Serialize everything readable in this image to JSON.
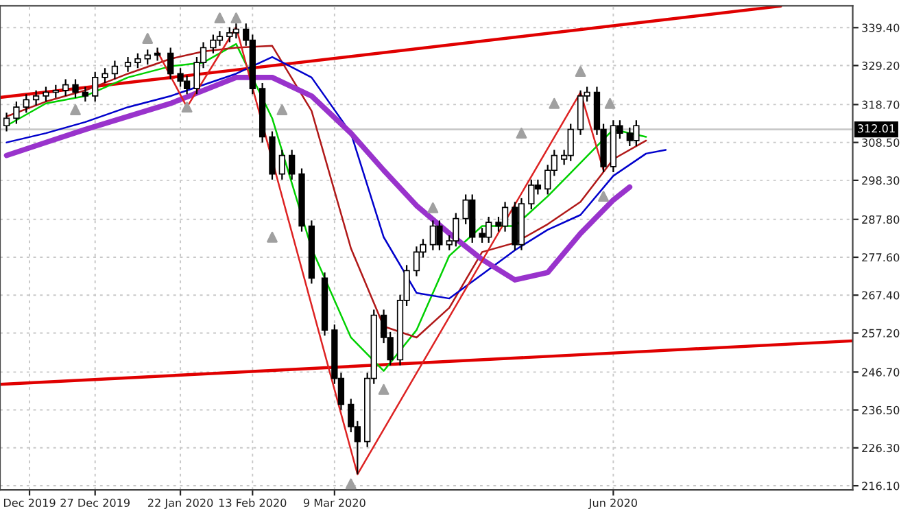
{
  "chart_data": {
    "type": "candlestick",
    "x": [
      "2019-11-30",
      "2019-12-03",
      "2019-12-06",
      "2019-12-09",
      "2019-12-12",
      "2019-12-15",
      "2019-12-18",
      "2019-12-21",
      "2019-12-24",
      "2019-12-27",
      "2019-12-30",
      "2020-01-02",
      "2020-01-06",
      "2020-01-09",
      "2020-01-12",
      "2020-01-15",
      "2020-01-19",
      "2020-01-22",
      "2020-01-24",
      "2020-01-27",
      "2020-01-29",
      "2020-02-01",
      "2020-02-03",
      "2020-02-06",
      "2020-02-08",
      "2020-02-11",
      "2020-02-13",
      "2020-02-16",
      "2020-02-19",
      "2020-02-22",
      "2020-02-25",
      "2020-02-28",
      "2020-03-02",
      "2020-03-06",
      "2020-03-09",
      "2020-03-11",
      "2020-03-14",
      "2020-03-16",
      "2020-03-19",
      "2020-03-21",
      "2020-03-24",
      "2020-03-26",
      "2020-03-29",
      "2020-03-31",
      "2020-04-03",
      "2020-04-05",
      "2020-04-08",
      "2020-04-10",
      "2020-04-13",
      "2020-04-15",
      "2020-04-18",
      "2020-04-20",
      "2020-04-23",
      "2020-04-25",
      "2020-04-28",
      "2020-04-30",
      "2020-05-03",
      "2020-05-05",
      "2020-05-08",
      "2020-05-10",
      "2020-05-13",
      "2020-05-15",
      "2020-05-18",
      "2020-05-20",
      "2020-05-23",
      "2020-05-25",
      "2020-05-28",
      "2020-05-30",
      "2020-06-02",
      "2020-06-04",
      "2020-06-07",
      "2020-06-09"
    ],
    "ohlc": [
      [
        313,
        316.5,
        311.5,
        315
      ],
      [
        315,
        319.5,
        313.5,
        318
      ],
      [
        318,
        321.5,
        316.5,
        320
      ],
      [
        320,
        322.5,
        318.5,
        321
      ],
      [
        321,
        323.5,
        319.5,
        322
      ],
      [
        322,
        324,
        320.5,
        322.5
      ],
      [
        322.5,
        325.5,
        321,
        324
      ],
      [
        324,
        325.5,
        320.5,
        322
      ],
      [
        322,
        323.5,
        319.5,
        321
      ],
      [
        321,
        327.5,
        319.5,
        326
      ],
      [
        326,
        328.5,
        324.5,
        327
      ],
      [
        327,
        330.5,
        325.5,
        329
      ],
      [
        329,
        331.5,
        327.5,
        330
      ],
      [
        330,
        332.5,
        328.5,
        331
      ],
      [
        331,
        333.5,
        329.5,
        332
      ],
      [
        332.5,
        334,
        330.5,
        332
      ],
      [
        332.5,
        334,
        325.5,
        327
      ],
      [
        327,
        328.5,
        323.5,
        325
      ],
      [
        325,
        326.5,
        321.5,
        323
      ],
      [
        323,
        331.5,
        321.5,
        330
      ],
      [
        330,
        335.5,
        328.5,
        334
      ],
      [
        334,
        337.5,
        332.5,
        336
      ],
      [
        336,
        338.5,
        334.5,
        337
      ],
      [
        337,
        339.5,
        335.5,
        338
      ],
      [
        338,
        340.5,
        336.5,
        339
      ],
      [
        339,
        340.5,
        334.5,
        336
      ],
      [
        336,
        337.5,
        321.5,
        323
      ],
      [
        323,
        324.5,
        308.5,
        310
      ],
      [
        310,
        311.5,
        298.5,
        300
      ],
      [
        300,
        306.5,
        298.5,
        305
      ],
      [
        305,
        306.5,
        298.5,
        300
      ],
      [
        300,
        301.5,
        284.5,
        286
      ],
      [
        286,
        287.5,
        270.5,
        272
      ],
      [
        272,
        273.5,
        256.5,
        258
      ],
      [
        258,
        259.5,
        243.5,
        245
      ],
      [
        245,
        246.5,
        236.5,
        238
      ],
      [
        238,
        239.5,
        230.5,
        232
      ],
      [
        232,
        233.5,
        219.2,
        228
      ],
      [
        228,
        246.5,
        226.5,
        245
      ],
      [
        245,
        263.5,
        243.5,
        262
      ],
      [
        262,
        263.5,
        254.5,
        256
      ],
      [
        256,
        257.5,
        248.5,
        250
      ],
      [
        250,
        267.5,
        248.5,
        266
      ],
      [
        266,
        275.5,
        264.5,
        274
      ],
      [
        274,
        280.5,
        272.5,
        279
      ],
      [
        279,
        282.5,
        277.5,
        281
      ],
      [
        281,
        287.5,
        279.5,
        286
      ],
      [
        286,
        287.5,
        279.5,
        281
      ],
      [
        281,
        283.5,
        279.5,
        282
      ],
      [
        282,
        289.5,
        280.5,
        288
      ],
      [
        288,
        294.5,
        286.5,
        293
      ],
      [
        293,
        294.5,
        281.5,
        283
      ],
      [
        284,
        285.5,
        281.5,
        283
      ],
      [
        283,
        288.5,
        281.5,
        287
      ],
      [
        287,
        288.5,
        284.5,
        286
      ],
      [
        286,
        292.5,
        284.5,
        291
      ],
      [
        291,
        292.5,
        279.5,
        281
      ],
      [
        281,
        293.5,
        279.5,
        292
      ],
      [
        292,
        298.5,
        290.5,
        297
      ],
      [
        297,
        298.5,
        294.5,
        296
      ],
      [
        296,
        302.5,
        294.5,
        301
      ],
      [
        301,
        306.5,
        299.5,
        305
      ],
      [
        304,
        306.5,
        302.5,
        305
      ],
      [
        305,
        313.5,
        303.5,
        312
      ],
      [
        312,
        322.5,
        310.5,
        321
      ],
      [
        321,
        323.5,
        319.5,
        322
      ],
      [
        322,
        323.5,
        310.5,
        312
      ],
      [
        312,
        313.5,
        300.5,
        302
      ],
      [
        302,
        314.5,
        300.5,
        313
      ],
      [
        313,
        314.5,
        309.5,
        311
      ],
      [
        311,
        312.5,
        307.5,
        309
      ],
      [
        309,
        314.5,
        307.5,
        313
      ]
    ],
    "series": [
      {
        "type": "line",
        "color": "#e00000",
        "x": [
          "2019-11-28",
          "2020-07-23"
        ],
        "values": [
          320.6,
          345.2
        ]
      },
      {
        "type": "line",
        "color": "#e00000",
        "x": [
          "2019-11-28",
          "2020-08-14"
        ],
        "values": [
          243.4,
          255.1
        ]
      },
      {
        "type": "line",
        "color": "#00d000",
        "x": [
          "2019-11-30",
          "2019-12-12",
          "2019-12-24",
          "2020-01-06",
          "2020-01-19",
          "2020-01-29",
          "2020-02-08",
          "2020-02-19",
          "2020-03-02",
          "2020-03-14",
          "2020-03-24",
          "2020-04-03",
          "2020-04-13",
          "2020-04-23",
          "2020-05-03",
          "2020-05-13",
          "2020-05-23",
          "2020-06-02",
          "2020-06-12"
        ],
        "values": [
          313,
          319,
          321,
          326,
          329,
          330,
          335,
          315,
          280,
          256,
          247,
          258,
          278,
          286,
          286,
          294,
          303,
          312,
          310
        ]
      },
      {
        "type": "line",
        "color": "#b01818",
        "x": [
          "2019-11-30",
          "2019-12-12",
          "2019-12-24",
          "2020-01-06",
          "2020-01-19",
          "2020-01-29",
          "2020-02-08",
          "2020-02-19",
          "2020-03-02",
          "2020-03-14",
          "2020-03-24",
          "2020-04-03",
          "2020-04-13",
          "2020-04-23",
          "2020-05-03",
          "2020-05-13",
          "2020-05-23",
          "2020-06-02",
          "2020-06-12"
        ],
        "values": [
          315.5,
          319.5,
          322.5,
          327,
          331,
          333,
          334,
          334.5,
          317,
          280,
          259,
          256,
          264,
          279,
          281.5,
          286.5,
          292.5,
          304,
          309
        ]
      },
      {
        "type": "line",
        "color": "#0000cc",
        "x": [
          "2019-11-30",
          "2019-12-12",
          "2019-12-24",
          "2020-01-06",
          "2020-01-19",
          "2020-01-29",
          "2020-02-08",
          "2020-02-19",
          "2020-03-02",
          "2020-03-14",
          "2020-03-24",
          "2020-04-03",
          "2020-04-13",
          "2020-04-23",
          "2020-05-03",
          "2020-05-13",
          "2020-05-23",
          "2020-06-02",
          "2020-06-12",
          "2020-06-18"
        ],
        "values": [
          308.5,
          311,
          314,
          318,
          321,
          324,
          327,
          331.5,
          326,
          311,
          283,
          268,
          266.5,
          273,
          279.5,
          285,
          289,
          299.5,
          305.5,
          306.5
        ]
      },
      {
        "type": "line",
        "color": "#9933cc",
        "x": [
          "2019-11-30",
          "2019-12-12",
          "2019-12-24",
          "2020-01-06",
          "2020-01-19",
          "2020-01-29",
          "2020-02-08",
          "2020-02-19",
          "2020-03-02",
          "2020-03-14",
          "2020-03-24",
          "2020-04-03",
          "2020-04-13",
          "2020-04-23",
          "2020-05-03",
          "2020-05-13",
          "2020-05-23",
          "2020-06-02",
          "2020-06-07"
        ],
        "values": [
          305,
          308.5,
          312,
          315.5,
          319,
          322.5,
          326,
          326,
          321,
          311,
          301,
          291.5,
          284,
          277,
          271.5,
          273.5,
          284,
          293,
          296.5
        ]
      },
      {
        "type": "line",
        "color": "#dd2222",
        "x": [
          "2020-01-15",
          "2020-01-24",
          "2020-02-08",
          "2020-03-16",
          "2020-05-23",
          "2020-05-30"
        ],
        "values": [
          333,
          318,
          339.5,
          219.2,
          322,
          301
        ]
      },
      {
        "type": "scatter",
        "color": "#a0a0a0",
        "marker": "triangle",
        "x": [
          "2020-01-12",
          "2020-02-03",
          "2020-02-08",
          "2020-02-22",
          "2020-04-08",
          "2020-05-05",
          "2020-05-15",
          "2020-05-23",
          "2020-06-01",
          "2019-12-21",
          "2020-01-24",
          "2020-02-19",
          "2020-03-14",
          "2020-03-24",
          "2020-05-30"
        ],
        "values": [
          336.5,
          342,
          342,
          317.3,
          290.9,
          311,
          319,
          327.6,
          319,
          317.3,
          318,
          283,
          216.6,
          242,
          294
        ]
      }
    ],
    "ref_lines": [
      {
        "axis": "y",
        "value": 312.01,
        "label": "312.01",
        "color": "#c8c8c8"
      }
    ],
    "xlim": [
      "2019-11-28",
      "2020-08-14"
    ],
    "xticks": [
      {
        "value": "2019-12-07",
        "label": "Dec 2019"
      },
      {
        "value": "2019-12-27",
        "label": "27 Dec 2019"
      },
      {
        "value": "2020-01-22",
        "label": "22 Jan 2020"
      },
      {
        "value": "2020-02-13",
        "label": "13 Feb 2020"
      },
      {
        "value": "2020-03-09",
        "label": "9 Mar 2020"
      },
      {
        "value": "2020-06-02",
        "label": "Jun 2020"
      }
    ],
    "ylim": [
      215.0,
      345.3
    ],
    "yticks": [
      {
        "value": 216.1,
        "label": "216.10"
      },
      {
        "value": 226.3,
        "label": "226.30"
      },
      {
        "value": 236.5,
        "label": "236.50"
      },
      {
        "value": 246.7,
        "label": "246.70"
      },
      {
        "value": 257.2,
        "label": "257.20"
      },
      {
        "value": 267.4,
        "label": "267.40"
      },
      {
        "value": 277.6,
        "label": "277.60"
      },
      {
        "value": 287.8,
        "label": "287.80"
      },
      {
        "value": 298.3,
        "label": "298.30"
      },
      {
        "value": 308.5,
        "label": "308.50"
      },
      {
        "value": 318.7,
        "label": "318.70"
      },
      {
        "value": 329.2,
        "label": "329.20"
      },
      {
        "value": 339.4,
        "label": "339.40"
      }
    ],
    "grid": true,
    "legend": false
  }
}
